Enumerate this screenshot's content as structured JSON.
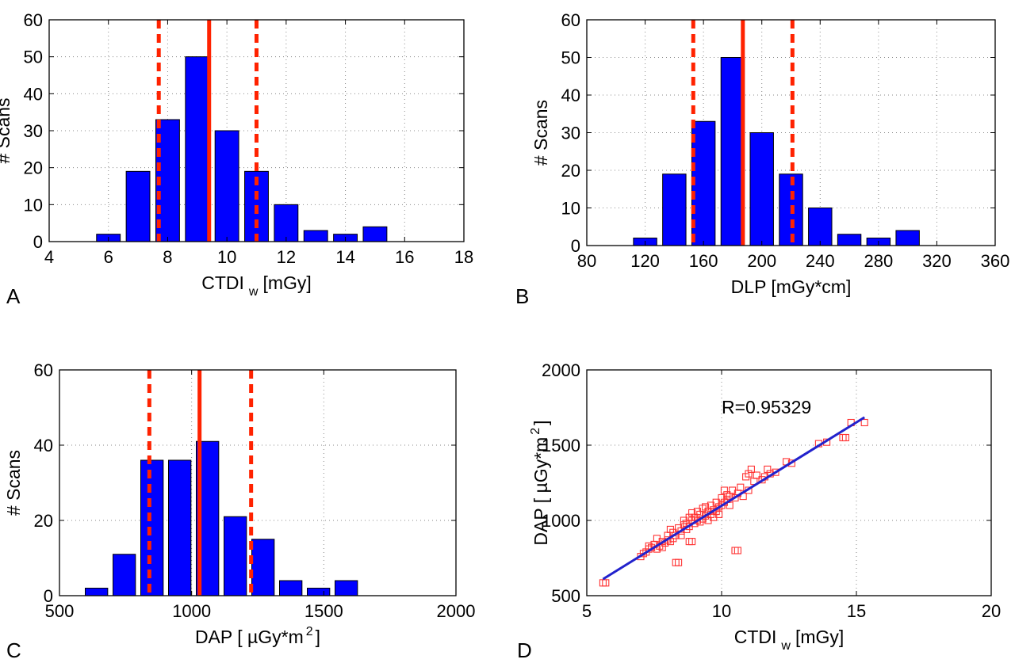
{
  "colors": {
    "bar": "#0000ff",
    "ref_line": "#ff2200",
    "fit_line": "#2222cc",
    "marker": "#ff3333"
  },
  "chart_data": [
    {
      "panel": "A",
      "type": "bar",
      "xlabel": "CTDI",
      "xlabel_sub": "w",
      "xlabel_unit": "[mGy]",
      "ylabel": "# Scans",
      "xlim": [
        4,
        18
      ],
      "ylim": [
        0,
        60
      ],
      "xticks": [
        4,
        6,
        8,
        10,
        12,
        14,
        16,
        18
      ],
      "yticks": [
        0,
        10,
        20,
        30,
        40,
        50,
        60
      ],
      "bar_width": 0.8,
      "x": [
        6,
        7,
        8,
        9,
        10,
        11,
        12,
        13,
        14,
        15
      ],
      "values": [
        2,
        19,
        33,
        50,
        30,
        19,
        10,
        3,
        2,
        4
      ],
      "grid": true,
      "vlines": [
        {
          "x": 9.4,
          "style": "solid"
        },
        {
          "x": 7.7,
          "style": "dashed"
        },
        {
          "x": 11.0,
          "style": "dashed"
        }
      ]
    },
    {
      "panel": "B",
      "type": "bar",
      "xlabel": "DLP [mGy*cm]",
      "ylabel": "# Scans",
      "xlim": [
        80,
        360
      ],
      "ylim": [
        0,
        60
      ],
      "xticks": [
        80,
        120,
        160,
        200,
        240,
        280,
        320,
        360
      ],
      "yticks": [
        0,
        10,
        20,
        30,
        40,
        50,
        60
      ],
      "bar_width": 16,
      "x": [
        120,
        140,
        160,
        180,
        200,
        220,
        240,
        260,
        280,
        300
      ],
      "values": [
        2,
        19,
        33,
        50,
        30,
        19,
        10,
        3,
        2,
        4
      ],
      "grid": true,
      "vlines": [
        {
          "x": 187,
          "style": "solid"
        },
        {
          "x": 153,
          "style": "dashed"
        },
        {
          "x": 221,
          "style": "dashed"
        }
      ]
    },
    {
      "panel": "C",
      "type": "bar",
      "xlabel": "DAP [ µGy*m",
      "xlabel_sup": "2",
      "xlabel_end": "]",
      "ylabel": "# Scans",
      "xlim": [
        500,
        2000
      ],
      "ylim": [
        0,
        60
      ],
      "xticks": [
        500,
        1000,
        1500,
        2000
      ],
      "yticks": [
        0,
        20,
        40,
        60
      ],
      "bar_width": 85,
      "x": [
        640,
        745,
        850,
        955,
        1060,
        1165,
        1270,
        1375,
        1480,
        1585
      ],
      "values": [
        2,
        11,
        36,
        36,
        41,
        21,
        15,
        4,
        2,
        4
      ],
      "grid": true,
      "vlines": [
        {
          "x": 1030,
          "style": "solid"
        },
        {
          "x": 840,
          "style": "dashed"
        },
        {
          "x": 1225,
          "style": "dashed"
        }
      ]
    },
    {
      "panel": "D",
      "type": "scatter",
      "xlabel": "CTDI",
      "xlabel_sub": "w",
      "xlabel_unit": "[mGy]",
      "ylabel": "DAP [ µGy*m",
      "ylabel_sup": "2",
      "ylabel_end": "]",
      "xlim": [
        5,
        20
      ],
      "ylim": [
        500,
        2000
      ],
      "xticks": [
        5,
        10,
        15,
        20
      ],
      "yticks": [
        500,
        1000,
        1500,
        2000
      ],
      "grid": true,
      "annotation": "R=0.95329",
      "fit_line": {
        "x": [
          5.6,
          15.3
        ],
        "y": [
          610,
          1685
        ]
      },
      "points": [
        [
          5.6,
          585
        ],
        [
          5.7,
          585
        ],
        [
          7.0,
          760
        ],
        [
          7.1,
          780
        ],
        [
          7.2,
          790
        ],
        [
          7.3,
          810
        ],
        [
          7.3,
          830
        ],
        [
          7.4,
          820
        ],
        [
          7.5,
          840
        ],
        [
          7.6,
          810
        ],
        [
          7.6,
          880
        ],
        [
          7.7,
          830
        ],
        [
          7.8,
          820
        ],
        [
          7.8,
          860
        ],
        [
          7.9,
          850
        ],
        [
          8.0,
          870
        ],
        [
          8.0,
          900
        ],
        [
          8.1,
          860
        ],
        [
          8.1,
          940
        ],
        [
          8.2,
          880
        ],
        [
          8.2,
          920
        ],
        [
          8.3,
          720
        ],
        [
          8.4,
          720
        ],
        [
          8.3,
          900
        ],
        [
          8.4,
          950
        ],
        [
          8.5,
          900
        ],
        [
          8.5,
          930
        ],
        [
          8.6,
          970
        ],
        [
          8.6,
          1000
        ],
        [
          8.7,
          940
        ],
        [
          8.7,
          980
        ],
        [
          8.8,
          860
        ],
        [
          8.8,
          960
        ],
        [
          8.8,
          1020
        ],
        [
          8.9,
          860
        ],
        [
          8.9,
          1000
        ],
        [
          8.9,
          1050
        ],
        [
          9.0,
          980
        ],
        [
          9.0,
          1020
        ],
        [
          9.1,
          1000
        ],
        [
          9.1,
          1060
        ],
        [
          9.2,
          990
        ],
        [
          9.2,
          1040
        ],
        [
          9.3,
          1010
        ],
        [
          9.3,
          1080
        ],
        [
          9.4,
          1030
        ],
        [
          9.4,
          1090
        ],
        [
          9.5,
          1000
        ],
        [
          9.5,
          1060
        ],
        [
          9.6,
          1040
        ],
        [
          9.6,
          1100
        ],
        [
          9.7,
          1020
        ],
        [
          9.7,
          1070
        ],
        [
          9.8,
          1060
        ],
        [
          9.8,
          1120
        ],
        [
          9.9,
          1040
        ],
        [
          9.9,
          1090
        ],
        [
          10.0,
          1100
        ],
        [
          10.0,
          1150
        ],
        [
          10.1,
          1120
        ],
        [
          10.1,
          1200
        ],
        [
          10.2,
          1140
        ],
        [
          10.2,
          1170
        ],
        [
          10.3,
          1100
        ],
        [
          10.3,
          1160
        ],
        [
          10.4,
          1200
        ],
        [
          10.5,
          800
        ],
        [
          10.6,
          800
        ],
        [
          10.5,
          1150
        ],
        [
          10.6,
          1180
        ],
        [
          10.7,
          1220
        ],
        [
          10.8,
          1160
        ],
        [
          10.9,
          1290
        ],
        [
          11.0,
          1310
        ],
        [
          11.0,
          1200
        ],
        [
          11.1,
          1340
        ],
        [
          11.2,
          1260
        ],
        [
          11.3,
          1300
        ],
        [
          11.5,
          1270
        ],
        [
          11.6,
          1290
        ],
        [
          11.7,
          1340
        ],
        [
          11.8,
          1310
        ],
        [
          12.0,
          1320
        ],
        [
          12.4,
          1390
        ],
        [
          12.6,
          1380
        ],
        [
          13.6,
          1510
        ],
        [
          13.9,
          1520
        ],
        [
          14.5,
          1550
        ],
        [
          14.6,
          1550
        ],
        [
          14.8,
          1650
        ],
        [
          15.3,
          1650
        ]
      ]
    }
  ]
}
